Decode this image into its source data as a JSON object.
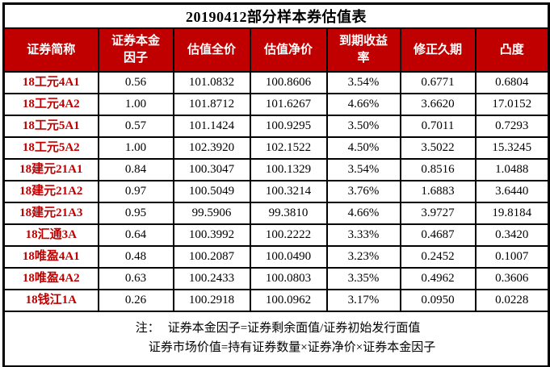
{
  "title": "20190412部分样本券估值表",
  "colors": {
    "header_bg": "#C00000",
    "header_text": "#FFFFFF",
    "security_name_text": "#C00000",
    "border": "#000000",
    "value_text": "#000000"
  },
  "table": {
    "columns": [
      "证券简称",
      "证券本金因子",
      "估值全价",
      "估值净价",
      "到期收益率",
      "修正久期",
      "凸度"
    ],
    "rows": [
      {
        "name": "18工元4A1",
        "factor": "0.56",
        "full_price": "101.0832",
        "net_price": "100.8606",
        "ytm": "3.54%",
        "duration": "0.6771",
        "convexity": "0.6804"
      },
      {
        "name": "18工元4A2",
        "factor": "1.00",
        "full_price": "101.8712",
        "net_price": "101.6267",
        "ytm": "4.66%",
        "duration": "3.6620",
        "convexity": "17.0152"
      },
      {
        "name": "18工元5A1",
        "factor": "0.57",
        "full_price": "101.1424",
        "net_price": "100.9295",
        "ytm": "3.50%",
        "duration": "0.7011",
        "convexity": "0.7293"
      },
      {
        "name": "18工元5A2",
        "factor": "1.00",
        "full_price": "102.3920",
        "net_price": "102.1522",
        "ytm": "4.50%",
        "duration": "3.5022",
        "convexity": "15.3245"
      },
      {
        "name": "18建元21A1",
        "factor": "0.84",
        "full_price": "100.3047",
        "net_price": "100.1329",
        "ytm": "3.54%",
        "duration": "0.8516",
        "convexity": "1.0488"
      },
      {
        "name": "18建元21A2",
        "factor": "0.97",
        "full_price": "100.5049",
        "net_price": "100.3214",
        "ytm": "3.76%",
        "duration": "1.6883",
        "convexity": "3.6440"
      },
      {
        "name": "18建元21A3",
        "factor": "0.95",
        "full_price": "99.5906",
        "net_price": "99.3810",
        "ytm": "4.66%",
        "duration": "3.9727",
        "convexity": "19.8184"
      },
      {
        "name": "18汇通3A",
        "factor": "0.64",
        "full_price": "100.3992",
        "net_price": "100.2222",
        "ytm": "3.33%",
        "duration": "0.4687",
        "convexity": "0.3420"
      },
      {
        "name": "18唯盈4A1",
        "factor": "0.48",
        "full_price": "100.2087",
        "net_price": "100.0490",
        "ytm": "3.23%",
        "duration": "0.2452",
        "convexity": "0.1007"
      },
      {
        "name": "18唯盈4A2",
        "factor": "0.63",
        "full_price": "100.2433",
        "net_price": "100.0803",
        "ytm": "3.35%",
        "duration": "0.4962",
        "convexity": "0.3606"
      },
      {
        "name": "18钱江1A",
        "factor": "0.26",
        "full_price": "100.2918",
        "net_price": "100.0962",
        "ytm": "3.17%",
        "duration": "0.0950",
        "convexity": "0.0228"
      }
    ]
  },
  "notes": {
    "prefix": "注：",
    "line1": "证券本金因子=证券剩余面值/证券初始发行面值",
    "line2": "证券市场价值=持有证券数量×证券净价×证券本金因子"
  }
}
